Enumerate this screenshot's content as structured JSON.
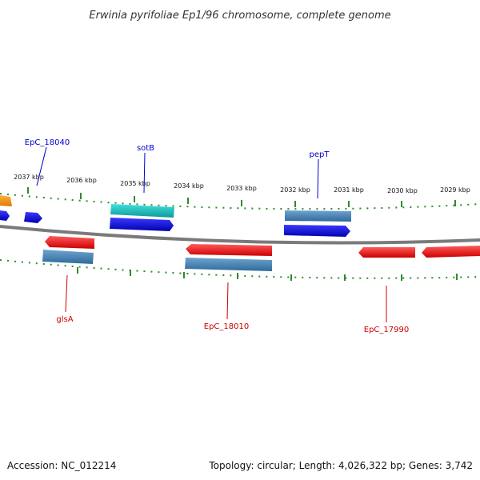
{
  "title": "Erwinia pyrifoliae Ep1/96 chromosome, complete genome",
  "footer": {
    "accession": "Accession: NC_012214",
    "summary": "Topology: circular; Length: 4,026,322 bp; Genes: 3,742"
  },
  "ticks": [
    "2037 kbp",
    "2036 kbp",
    "2035 kbp",
    "2034 kbp",
    "2033 kbp",
    "2032 kbp",
    "2031 kbp",
    "2030 kbp",
    "2029 kbp"
  ],
  "labels": {
    "epc18040": "EpC_18040",
    "sotb": "sotB",
    "pept": "pepT",
    "glsa": "glsA",
    "epc18010": "EpC_18010",
    "epc17990": "EpC_17990"
  },
  "colors": {
    "backbone": "#7a7a7a",
    "tick": "#2e8b2e",
    "plus_gene": "#0000e0",
    "minus_gene": "#ff0000",
    "steelblue_gene": "#4682b4",
    "cyan_gene": "#20c8c8",
    "orange_gene": "#ff9900"
  }
}
